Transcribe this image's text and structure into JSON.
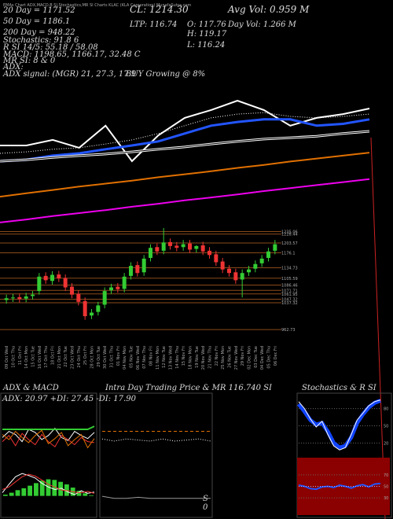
{
  "chart_data": [
    {
      "type": "line",
      "annotations": [
        "EMAs Chart ADX,MACD,B SI,Stochastics,MR SI Charts KLAC (KLA Corporation) MunafaSutra.com",
        "20 Day = 1171.52",
        "50 Day = 1186.1",
        "200 Day = 948.22",
        "Stochastics: 91.8 6",
        "R SI 14/5: 55.18 / 58.08",
        "MACD: 1198.65, 1166.17, 32.48 C",
        "MR SI: 8 & 0",
        "ADX:",
        "ADX signal: (MGR) 21, 27.3, 17.9",
        "BUY Growing @ 8%",
        "CL: 1214.30",
        "LTP: 116.74",
        "O: 117.76",
        "H: 119.17",
        "L: 116.24",
        "Avg Vol: 0.959 M",
        "Day Vol: 1.266 M"
      ],
      "ylim": [
        900,
        1300
      ],
      "series": [
        {
          "color": "#ffffff",
          "style": "solid",
          "width": 2,
          "values": [
            1121,
            1121,
            1136,
            1115,
            1174,
            1079,
            1148,
            1195,
            1216,
            1241,
            1216,
            1174,
            1195,
            1205,
            1220
          ]
        },
        {
          "color": "#2255ff",
          "style": "solid",
          "width": 3,
          "values": [
            1079,
            1083,
            1094,
            1100,
            1111,
            1121,
            1132,
            1153,
            1174,
            1184,
            1191,
            1191,
            1174,
            1179,
            1191
          ]
        },
        {
          "color": "#ffffff",
          "style": "dotted",
          "width": 1,
          "values": [
            1100,
            1104,
            1111,
            1115,
            1125,
            1136,
            1153,
            1174,
            1195,
            1205,
            1209,
            1199,
            1195,
            1199,
            1205
          ]
        },
        {
          "color": "#ffffff",
          "style": "double",
          "width": 3,
          "values": [
            1079,
            1083,
            1089,
            1094,
            1098,
            1104,
            1111,
            1117,
            1125,
            1132,
            1138,
            1142,
            1146,
            1153,
            1159
          ]
        },
        {
          "color": "#e07000",
          "style": "solid",
          "width": 2,
          "values": [
            984,
            993,
            1002,
            1011,
            1019,
            1027,
            1036,
            1044,
            1052,
            1061,
            1069,
            1078,
            1086,
            1094,
            1102
          ]
        },
        {
          "color": "#ee00ee",
          "style": "solid",
          "width": 2,
          "values": [
            915,
            923,
            932,
            940,
            948,
            957,
            965,
            974,
            982,
            990,
            999,
            1007,
            1015,
            1023,
            1031
          ]
        }
      ]
    },
    {
      "type": "candlestick",
      "categories": [
        "09 Oct Wed",
        "10 Oct Thu",
        "11 Oct Fri",
        "14 Oct Mon",
        "15 Oct Tue",
        "16 Oct Wed",
        "17 Oct Thu",
        "18 Oct Fri",
        "21 Oct Mon",
        "22 Oct Tue",
        "23 Oct Wed",
        "24 Oct Thu",
        "25 Oct Fri",
        "28 Oct Mon",
        "29 Oct Tue",
        "30 Oct Wed",
        "31 Oct Thu",
        "01 Nov Fri",
        "04 Nov Mon",
        "05 Nov Tue",
        "06 Nov Wed",
        "07 Nov Thu",
        "08 Nov Fri",
        "11 Nov Mon",
        "12 Nov Tue",
        "13 Nov Wed",
        "14 Nov Thu",
        "15 Nov Fri",
        "18 Nov Mon",
        "19 Nov Tue",
        "20 Nov Wed",
        "21 Nov Thu",
        "22 Nov Fri",
        "25 Nov Mon",
        "26 Nov Tue",
        "27 Nov Wed",
        "29 Nov Fri",
        "02 Dec Mon",
        "03 Dec Tue",
        "04 Dec Wed",
        "05 Dec Thu",
        "06 Dec Fri"
      ],
      "open": [
        1045,
        1050,
        1053,
        1049,
        1056,
        1070,
        1112,
        1098,
        1116,
        1106,
        1082,
        1062,
        1042,
        1002,
        1012,
        1032,
        1072,
        1082,
        1076,
        1112,
        1142,
        1122,
        1162,
        1192,
        1182,
        1206,
        1196,
        1192,
        1202,
        1187,
        1197,
        1182,
        1172,
        1152,
        1132,
        1122,
        1102,
        1122,
        1132,
        1147,
        1162,
        1182
      ],
      "high": [
        1060,
        1062,
        1063,
        1065,
        1070,
        1120,
        1122,
        1125,
        1126,
        1116,
        1092,
        1072,
        1052,
        1020,
        1040,
        1080,
        1090,
        1092,
        1120,
        1150,
        1152,
        1170,
        1200,
        1202,
        1245,
        1216,
        1206,
        1212,
        1212,
        1197,
        1207,
        1192,
        1182,
        1162,
        1142,
        1132,
        1130,
        1140,
        1155,
        1170,
        1190,
        1212
      ],
      "low": [
        1035,
        1040,
        1038,
        1039,
        1046,
        1060,
        1090,
        1088,
        1095,
        1070,
        1050,
        1030,
        990,
        992,
        1002,
        1022,
        1062,
        1065,
        1066,
        1102,
        1110,
        1112,
        1152,
        1170,
        1172,
        1185,
        1180,
        1182,
        1175,
        1177,
        1170,
        1160,
        1140,
        1120,
        1110,
        1090,
        1052,
        1112,
        1122,
        1137,
        1152,
        1172
      ],
      "close": [
        1050,
        1052,
        1048,
        1055,
        1060,
        1110,
        1100,
        1115,
        1105,
        1080,
        1060,
        1040,
        1000,
        1010,
        1030,
        1070,
        1080,
        1075,
        1110,
        1140,
        1120,
        1160,
        1190,
        1180,
        1205,
        1195,
        1190,
        1200,
        1185,
        1195,
        1180,
        1170,
        1150,
        1130,
        1120,
        1100,
        1120,
        1130,
        1145,
        1160,
        1180,
        1200
      ],
      "ylim": [
        950,
        1245
      ],
      "yticks": [
        1235.06,
        1228.44,
        1203.57,
        1176.1,
        1134.73,
        1105.59,
        1086.46,
        1071.71,
        1061.95,
        1047.32,
        1037.32,
        962.73
      ],
      "up_color": "#33cc33",
      "down_color": "#ee3333",
      "grid": true,
      "grid_color": "#8a4a1a"
    },
    {
      "type": "line",
      "title": "ADX & MACD",
      "annotations": [
        "ADX: 20.97 +DI: 27.45 -DI: 17.90"
      ],
      "ylim": [
        0,
        50
      ],
      "series": [
        {
          "color": "#ffffff",
          "style": "solid",
          "width": 1,
          "values": [
            22,
            28,
            25,
            18,
            30,
            27,
            20,
            24,
            31,
            22,
            19,
            28,
            24,
            21,
            27
          ]
        },
        {
          "color": "#33cc33",
          "style": "solid",
          "width": 2,
          "values": [
            30,
            30,
            30,
            30,
            30,
            30,
            30,
            30,
            30,
            30,
            30,
            30,
            30,
            30,
            33
          ]
        },
        {
          "color": "#ee3333",
          "style": "solid",
          "width": 1,
          "values": [
            18,
            24,
            14,
            26,
            20,
            15,
            25,
            18,
            13,
            24,
            20,
            15,
            22,
            18,
            17
          ]
        },
        {
          "color": "#e07000",
          "style": "solid",
          "width": 1,
          "values": [
            25,
            20,
            28,
            22,
            17,
            24,
            29,
            16,
            21,
            27,
            14,
            20,
            25,
            12,
            21
          ]
        }
      ]
    },
    {
      "type": "bar",
      "ylim": [
        -30,
        50
      ],
      "color": "#33cc33",
      "values": [
        2,
        5,
        9,
        12,
        16,
        20,
        24,
        26,
        25,
        22,
        18,
        13,
        8,
        4,
        1
      ],
      "series": [
        {
          "color": "#ffffff",
          "style": "solid",
          "width": 1,
          "values": [
            5,
            18,
            30,
            35,
            32,
            28,
            20,
            14,
            10,
            12,
            6,
            2,
            8,
            4,
            6
          ]
        },
        {
          "color": "#ee3333",
          "style": "solid",
          "width": 1,
          "values": [
            10,
            14,
            22,
            30,
            34,
            31,
            25,
            18,
            14,
            9,
            8,
            6,
            5,
            7,
            4
          ]
        }
      ]
    },
    {
      "type": "line",
      "title": "Intra Day Trading Price  & MR 116.740 SI",
      "annotations": [
        "S",
        "0"
      ],
      "ylim": [
        114,
        119
      ],
      "series": [
        {
          "color": "#e07000",
          "style": "dashed",
          "width": 1,
          "values": [
            117.76,
            117.76,
            117.76,
            117.76,
            117.76,
            117.76,
            117.76,
            117.76,
            117.76,
            117.76
          ]
        },
        {
          "color": "#ffffff",
          "style": "dotted",
          "width": 1,
          "values": [
            117.4,
            117.3,
            117.4,
            117.35,
            117.3,
            117.4,
            117.3,
            117.35,
            117.4,
            117.3
          ]
        },
        {
          "color": "#999999",
          "style": "solid",
          "width": 1,
          "values": [
            114.7,
            114.6,
            114.6,
            114.65,
            114.6,
            114.6,
            114.6,
            114.6,
            114.6,
            114.6
          ]
        }
      ]
    },
    {
      "type": "line",
      "title": "Stochastics & R SI",
      "ylim": [
        0,
        100
      ],
      "yticks": [
        80,
        50,
        20
      ],
      "series": [
        {
          "color": "#1144ff",
          "style": "solid",
          "width": 5,
          "values": [
            88,
            75,
            60,
            52,
            55,
            40,
            20,
            12,
            15,
            30,
            55,
            70,
            82,
            90,
            94
          ]
        },
        {
          "color": "#ffffff",
          "style": "solid",
          "width": 1,
          "values": [
            92,
            80,
            62,
            48,
            58,
            35,
            15,
            8,
            12,
            35,
            60,
            72,
            85,
            92,
            95
          ]
        }
      ]
    },
    {
      "type": "line",
      "ylim": [
        0,
        100
      ],
      "yticks": [
        70,
        50,
        30
      ],
      "background": "#8b0000",
      "series": [
        {
          "color": "#2255ff",
          "style": "solid",
          "width": 2,
          "values": [
            52,
            50,
            46,
            45,
            49,
            50,
            48,
            52,
            50,
            47,
            51,
            53,
            49,
            54,
            55
          ]
        },
        {
          "color": "#aaaaff",
          "style": "dotted",
          "width": 1,
          "values": [
            50,
            50,
            50,
            50,
            50,
            50,
            50,
            50,
            50,
            50,
            50,
            50,
            50,
            50,
            50
          ]
        }
      ]
    }
  ]
}
